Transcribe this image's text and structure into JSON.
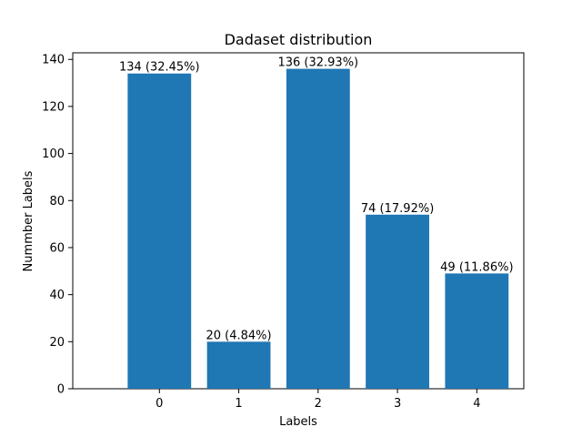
{
  "chart_data": {
    "type": "bar",
    "title": "Dadaset distribution",
    "xlabel": "Labels",
    "ylabel": "Nummber Labels",
    "categories": [
      "0",
      "1",
      "2",
      "3",
      "4"
    ],
    "values": [
      134,
      20,
      136,
      74,
      49
    ],
    "data_labels": [
      "134 (32.45%)",
      "20 (4.84%)",
      "136 (32.93%)",
      "74 (17.92%)",
      "49 (11.86%)"
    ],
    "ylim": [
      0,
      142.8
    ],
    "yticks": [
      0,
      20,
      40,
      60,
      80,
      100,
      120,
      140
    ],
    "bar_color": "#1f77b4",
    "grid": false,
    "legend": "none"
  }
}
